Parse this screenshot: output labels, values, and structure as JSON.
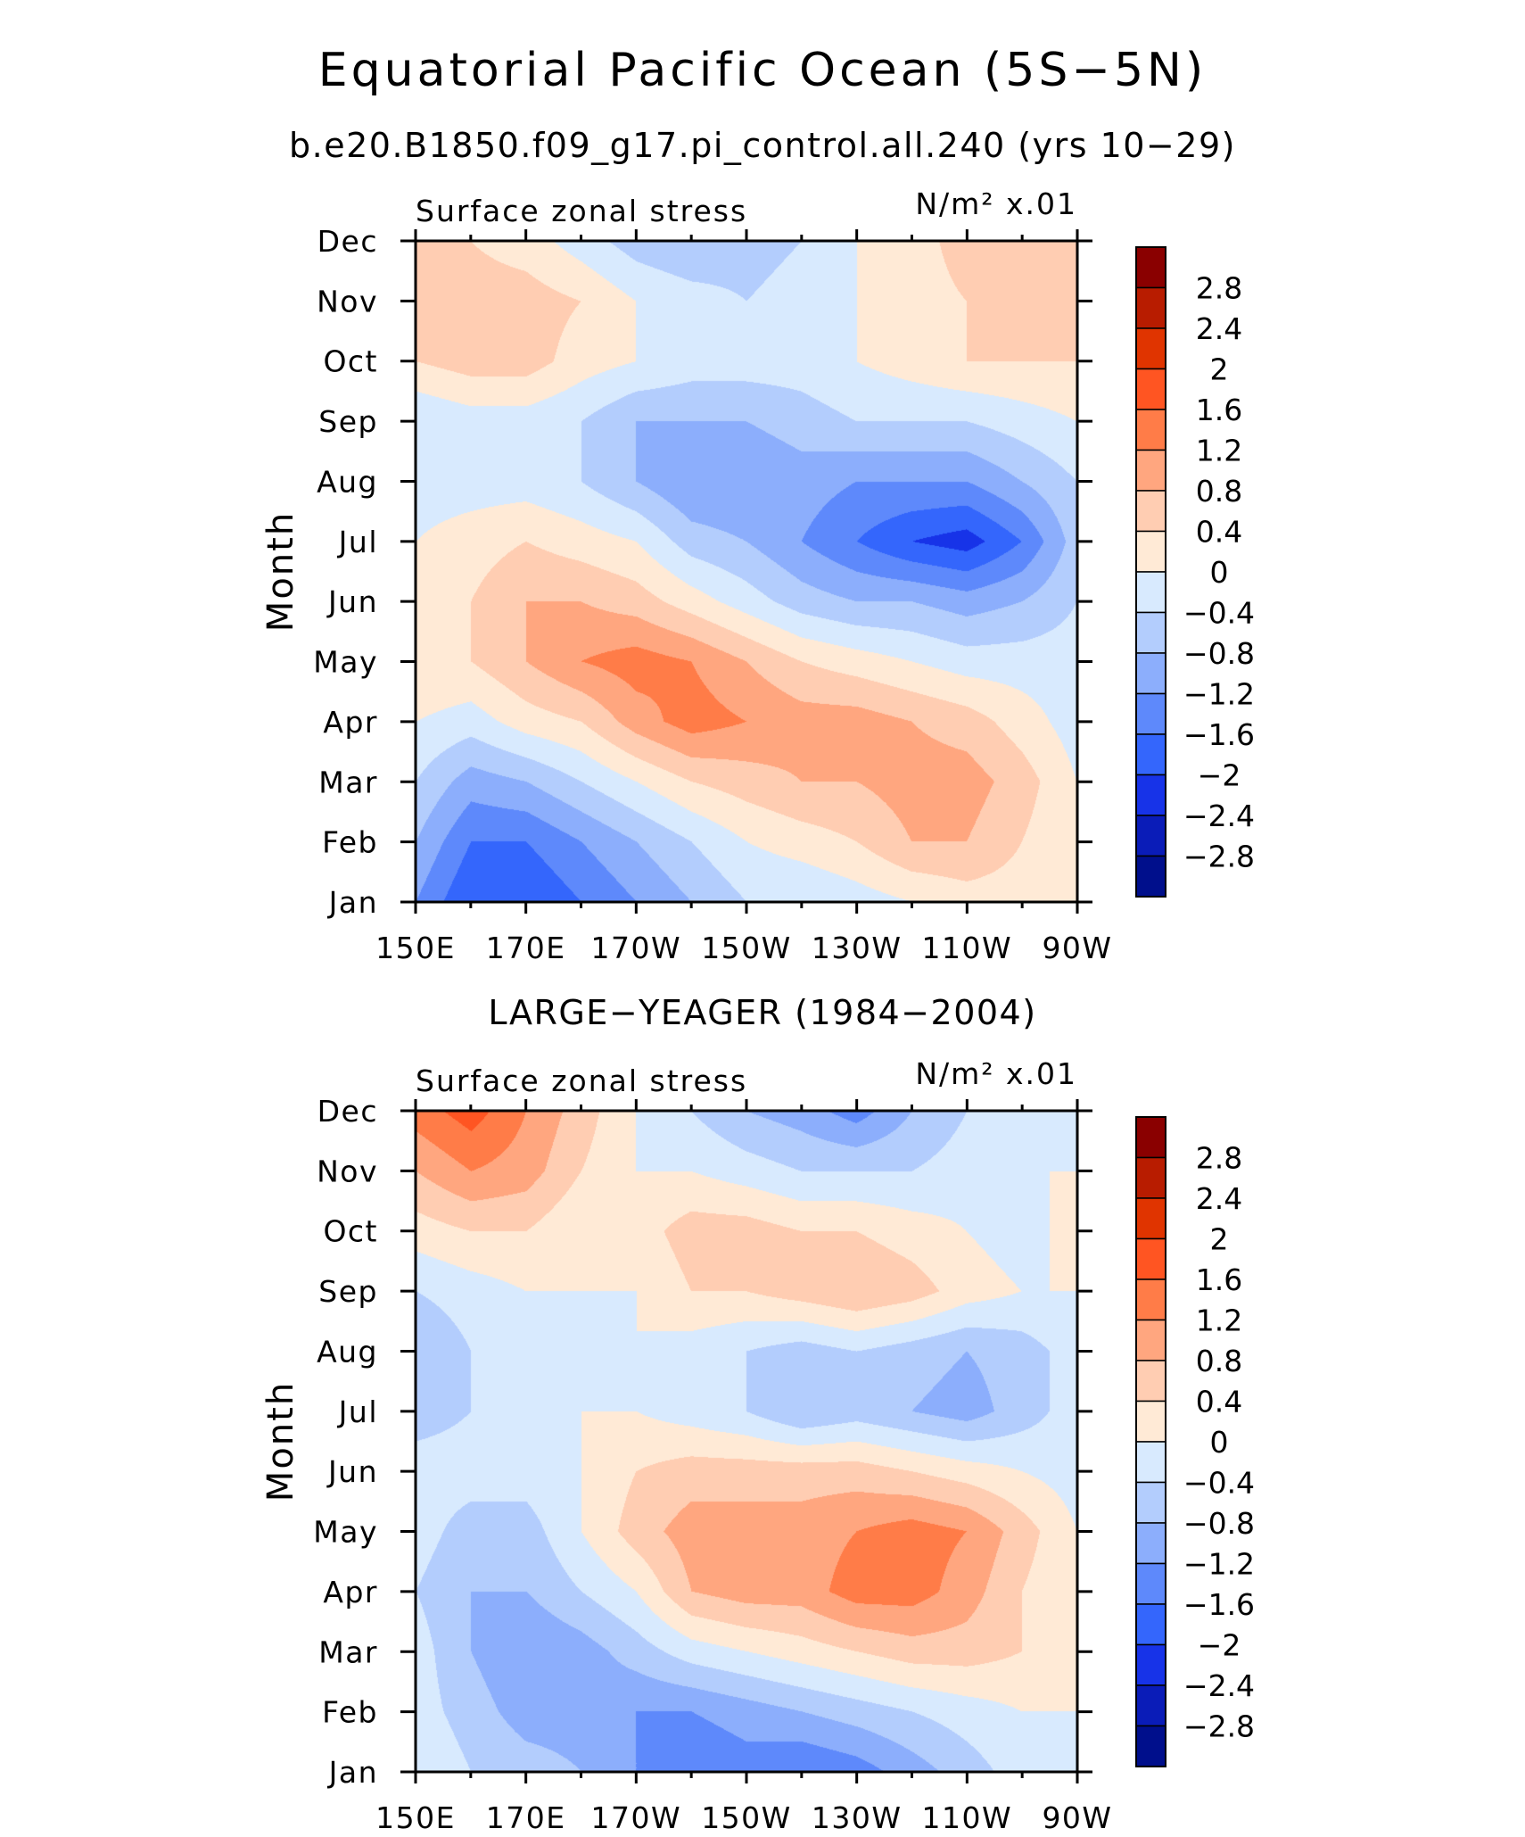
{
  "figure": {
    "title": "Equatorial Pacific Ocean (5S−5N)",
    "subtitle": "b.e20.B1850.f09_g17.pi_control.all.240 (yrs 10−29)"
  },
  "chart_data": [
    {
      "type": "heatmap",
      "panel_title": "",
      "left_label": "Surface zonal stress",
      "right_label": "N/m² x.01",
      "ylabel": "Month",
      "xlabel": "",
      "x_ticks": [
        "150E",
        "170E",
        "170W",
        "150W",
        "130W",
        "110W",
        "90W"
      ],
      "x_tick_values": [
        150,
        170,
        190,
        210,
        230,
        250,
        270
      ],
      "y_ticks": [
        "Jan",
        "Feb",
        "Mar",
        "Apr",
        "May",
        "Jun",
        "Jul",
        "Aug",
        "Sep",
        "Oct",
        "Nov",
        "Dec"
      ],
      "xlim": [
        150,
        270
      ],
      "ylim": [
        1,
        12
      ],
      "x_lon": [
        150,
        160,
        170,
        180,
        190,
        200,
        210,
        220,
        230,
        240,
        250,
        260,
        270
      ],
      "z": [
        [
          -1.2,
          -2.0,
          -2.0,
          -1.6,
          -1.2,
          -0.8,
          -0.4,
          -0.4,
          -0.2,
          0.0,
          0.2,
          0.2,
          0.0
        ],
        [
          -0.8,
          -1.6,
          -1.6,
          -1.2,
          -0.8,
          -0.4,
          0.0,
          0.2,
          0.4,
          0.8,
          0.8,
          0.4,
          0.0
        ],
        [
          -0.4,
          -1.0,
          -0.8,
          -0.4,
          0.0,
          0.4,
          0.6,
          0.8,
          0.8,
          1.0,
          1.0,
          0.6,
          0.0
        ],
        [
          0.0,
          -0.2,
          0.2,
          0.4,
          1.0,
          1.4,
          1.2,
          1.0,
          1.0,
          0.8,
          0.6,
          0.2,
          -0.2
        ],
        [
          0.4,
          0.4,
          0.8,
          1.2,
          1.4,
          1.2,
          0.8,
          0.4,
          0.2,
          0.0,
          -0.2,
          -0.2,
          -0.2
        ],
        [
          0.2,
          0.4,
          0.8,
          0.8,
          0.6,
          0.2,
          -0.2,
          -0.6,
          -0.8,
          -0.8,
          -1.0,
          -0.8,
          -0.4
        ],
        [
          0.0,
          0.2,
          0.4,
          0.2,
          0.0,
          -0.6,
          -0.8,
          -1.2,
          -1.6,
          -2.0,
          -2.2,
          -1.6,
          -0.6
        ],
        [
          -0.2,
          -0.2,
          -0.2,
          -0.4,
          -0.8,
          -1.2,
          -1.2,
          -1.0,
          -1.2,
          -1.2,
          -1.2,
          -0.8,
          -0.4
        ],
        [
          -0.4,
          -0.2,
          -0.2,
          -0.4,
          -0.8,
          -0.8,
          -0.8,
          -0.6,
          -0.4,
          -0.4,
          -0.4,
          -0.2,
          0.0
        ],
        [
          0.4,
          0.6,
          0.6,
          0.2,
          0.0,
          -0.2,
          -0.2,
          -0.2,
          0.0,
          0.2,
          0.4,
          0.4,
          0.4
        ],
        [
          0.6,
          0.6,
          0.6,
          0.4,
          0.0,
          -0.2,
          -0.4,
          -0.2,
          0.0,
          0.2,
          0.4,
          0.6,
          0.6
        ],
        [
          0.6,
          0.4,
          0.2,
          -0.2,
          -0.6,
          -0.8,
          -0.6,
          -0.4,
          0.0,
          0.2,
          0.6,
          0.6,
          0.6
        ]
      ]
    },
    {
      "type": "heatmap",
      "panel_title": "LARGE−YEAGER (1984−2004)",
      "left_label": "Surface zonal stress",
      "right_label": "N/m² x.01",
      "ylabel": "Month",
      "xlabel": "",
      "x_ticks": [
        "150E",
        "170E",
        "170W",
        "150W",
        "130W",
        "110W",
        "90W"
      ],
      "x_tick_values": [
        150,
        170,
        190,
        210,
        230,
        250,
        270
      ],
      "y_ticks": [
        "Jan",
        "Feb",
        "Mar",
        "Apr",
        "May",
        "Jun",
        "Jul",
        "Aug",
        "Sep",
        "Oct",
        "Nov",
        "Dec"
      ],
      "xlim": [
        150,
        270
      ],
      "ylim": [
        1,
        12
      ],
      "x_lon": [
        150,
        160,
        170,
        180,
        190,
        200,
        210,
        220,
        230,
        240,
        250,
        260,
        270
      ],
      "z": [
        [
          0.0,
          -0.4,
          -0.6,
          -0.8,
          -1.2,
          -1.6,
          -1.4,
          -1.6,
          -1.4,
          -1.0,
          -0.6,
          -0.2,
          0.0
        ],
        [
          -0.2,
          -0.6,
          -1.0,
          -1.0,
          -1.2,
          -1.2,
          -1.0,
          -0.8,
          -0.6,
          -0.4,
          -0.2,
          0.0,
          0.0
        ],
        [
          -0.2,
          -0.8,
          -1.2,
          -1.0,
          -0.6,
          -0.2,
          0.0,
          0.2,
          0.4,
          0.6,
          0.6,
          0.4,
          0.0
        ],
        [
          -0.4,
          -0.8,
          -0.8,
          -0.4,
          0.0,
          0.8,
          1.0,
          1.0,
          1.4,
          1.4,
          1.0,
          0.4,
          0.0
        ],
        [
          -0.2,
          -0.6,
          -0.6,
          0.0,
          0.6,
          1.0,
          1.0,
          1.0,
          1.2,
          1.4,
          1.2,
          0.6,
          0.0
        ],
        [
          -0.2,
          -0.2,
          -0.2,
          0.0,
          0.4,
          0.6,
          0.6,
          0.6,
          0.6,
          0.4,
          0.2,
          0.0,
          -0.2
        ],
        [
          -0.6,
          -0.4,
          -0.2,
          0.0,
          0.0,
          -0.2,
          -0.4,
          -0.8,
          -0.6,
          -0.8,
          -1.0,
          -0.6,
          -0.2
        ],
        [
          -0.8,
          -0.4,
          0.0,
          0.0,
          0.0,
          -0.2,
          -0.4,
          -0.6,
          -0.4,
          -0.6,
          -0.8,
          -0.6,
          -0.2
        ],
        [
          -0.4,
          -0.2,
          0.0,
          0.0,
          0.0,
          0.4,
          0.4,
          0.6,
          0.8,
          0.6,
          0.2,
          0.0,
          0.0
        ],
        [
          0.2,
          0.4,
          0.4,
          0.0,
          0.2,
          0.6,
          0.6,
          0.4,
          0.4,
          0.2,
          0.0,
          -0.2,
          0.2
        ],
        [
          0.8,
          1.2,
          1.0,
          0.4,
          0.0,
          0.0,
          -0.2,
          -0.4,
          -0.4,
          -0.4,
          -0.2,
          0.0,
          0.0
        ],
        [
          1.4,
          1.8,
          1.2,
          0.6,
          0.0,
          -0.4,
          -0.8,
          -1.0,
          -1.4,
          -0.8,
          -0.4,
          0.0,
          0.0
        ]
      ]
    }
  ],
  "colorbar": {
    "labels": [
      "2.8",
      "2.4",
      "2",
      "1.6",
      "1.2",
      "0.8",
      "0.4",
      "0",
      "−0.4",
      "−0.8",
      "−1.2",
      "−1.6",
      "−2",
      "−2.4",
      "−2.8"
    ],
    "levels": [
      2.8,
      2.4,
      2.0,
      1.6,
      1.2,
      0.8,
      0.4,
      0.0,
      -0.4,
      -0.8,
      -1.2,
      -1.6,
      -2.0,
      -2.4,
      -2.8
    ],
    "colors": [
      "#8a0000",
      "#b81c00",
      "#e03400",
      "#ff5522",
      "#ff7c48",
      "#ffa67f",
      "#ffcdb2",
      "#ffead6",
      "#d8eafe",
      "#b3cdfd",
      "#8caefc",
      "#5e89fb",
      "#3466fc",
      "#1733e8",
      "#0a1cb8",
      "#000f8c"
    ]
  }
}
